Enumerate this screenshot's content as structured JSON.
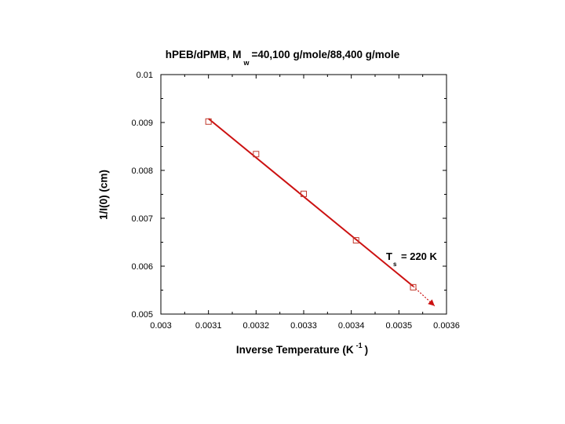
{
  "chart_data": {
    "type": "scatter",
    "title_prefix": "hPEB/dPMB, M",
    "title_subscript": "w",
    "title_suffix": "=40,100 g/mole/88,400 g/mole",
    "xlabel_prefix": "Inverse Temperature (K",
    "xlabel_superscript": "-1",
    "xlabel_suffix": ")",
    "ylabel": "1/I(0) (cm)",
    "xlim": [
      0.003,
      0.0036
    ],
    "ylim": [
      0.005,
      0.01
    ],
    "xticks": [
      "0.003",
      "0.0031",
      "0.0032",
      "0.0033",
      "0.0034",
      "0.0035",
      "0.0036"
    ],
    "yticks": [
      "0.01",
      "0.009",
      "0.008",
      "0.007",
      "0.006",
      "0.005"
    ],
    "grid": false,
    "series": [
      {
        "marker": "open-square",
        "color": "#c0392b",
        "x": [
          0.0031,
          0.0032,
          0.0033,
          0.00341,
          0.00353
        ],
        "y": [
          0.00902,
          0.00834,
          0.00751,
          0.00654,
          0.00556
        ]
      }
    ],
    "fit_line": {
      "color": "#cc1111",
      "x": [
        0.0031,
        0.00353
      ],
      "y": [
        0.00908,
        0.00558
      ]
    },
    "extrapolation": {
      "color": "#cc1111",
      "style": "dotted",
      "x": [
        0.00353,
        0.003575
      ],
      "y": [
        0.00558,
        0.00517
      ]
    },
    "annotation": {
      "prefix": "T",
      "subscript": "s",
      "suffix": " = 220 K"
    }
  }
}
